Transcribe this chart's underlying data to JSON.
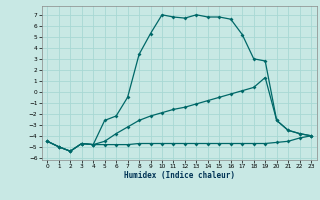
{
  "xlabel": "Humidex (Indice chaleur)",
  "bg_color": "#c8e8e4",
  "line_color": "#006868",
  "grid_color": "#a8d8d4",
  "xlim": [
    -0.5,
    23.5
  ],
  "ylim": [
    -6.2,
    7.8
  ],
  "xticks": [
    0,
    1,
    2,
    3,
    4,
    5,
    6,
    7,
    8,
    9,
    10,
    11,
    12,
    13,
    14,
    15,
    16,
    17,
    18,
    19,
    20,
    21,
    22,
    23
  ],
  "yticks": [
    -6,
    -5,
    -4,
    -3,
    -2,
    -1,
    0,
    1,
    2,
    3,
    4,
    5,
    6,
    7
  ],
  "curve_flat_x": [
    0,
    1,
    2,
    3,
    4,
    5,
    6,
    7,
    8,
    9,
    10,
    11,
    12,
    13,
    14,
    15,
    16,
    17,
    18,
    19,
    20,
    21,
    22,
    23
  ],
  "curve_flat_y": [
    -4.5,
    -5.0,
    -5.4,
    -4.7,
    -4.8,
    -4.8,
    -4.8,
    -4.8,
    -4.7,
    -4.7,
    -4.7,
    -4.7,
    -4.7,
    -4.7,
    -4.7,
    -4.7,
    -4.7,
    -4.7,
    -4.7,
    -4.7,
    -4.6,
    -4.5,
    -4.2,
    -4.0
  ],
  "curve_high_x": [
    0,
    1,
    2,
    3,
    4,
    5,
    6,
    7,
    8,
    9,
    10,
    11,
    12,
    13,
    14,
    15,
    16,
    17,
    18,
    19,
    20,
    21,
    22,
    23
  ],
  "curve_high_y": [
    -4.5,
    -5.0,
    -5.4,
    -4.7,
    -4.8,
    -2.6,
    -2.2,
    -0.5,
    3.4,
    5.3,
    7.0,
    6.8,
    6.7,
    7.0,
    6.8,
    6.8,
    6.6,
    5.2,
    3.0,
    2.8,
    -2.6,
    -3.5,
    -3.8,
    -4.0
  ],
  "curve_mid_x": [
    0,
    1,
    2,
    3,
    4,
    5,
    6,
    7,
    8,
    9,
    10,
    11,
    12,
    13,
    14,
    15,
    16,
    17,
    18,
    19,
    20,
    21,
    22,
    23
  ],
  "curve_mid_y": [
    -4.5,
    -5.0,
    -5.4,
    -4.7,
    -4.8,
    -4.5,
    -3.8,
    -3.2,
    -2.6,
    -2.2,
    -1.9,
    -1.6,
    -1.4,
    -1.1,
    -0.8,
    -0.5,
    -0.2,
    0.1,
    0.4,
    1.3,
    -2.6,
    -3.5,
    -3.8,
    -4.0
  ]
}
